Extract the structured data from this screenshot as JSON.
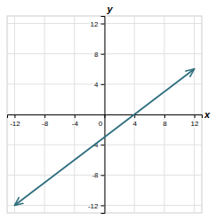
{
  "chart_data": {
    "type": "line",
    "x_label": "x",
    "y_label": "y",
    "x": [
      -12,
      12
    ],
    "series": [
      {
        "values": [
          -12,
          6
        ],
        "color": "#2e6e7e"
      }
    ],
    "xlim": [
      -13,
      13
    ],
    "ylim": [
      -13,
      13
    ],
    "xticks": [
      -12,
      -8,
      -4,
      0,
      4,
      8,
      12
    ],
    "yticks": [
      -12,
      -8,
      -4,
      4,
      8,
      12
    ],
    "grid": true
  }
}
